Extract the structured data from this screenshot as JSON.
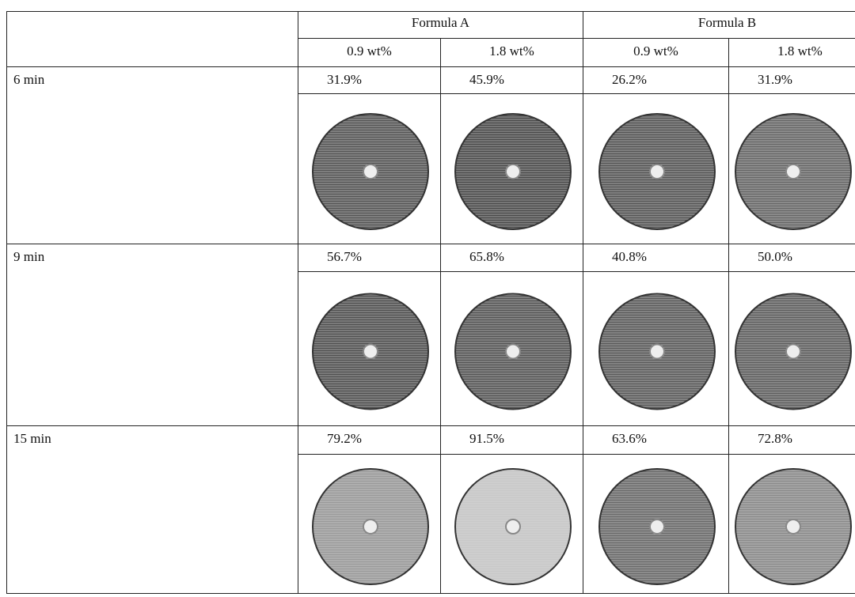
{
  "table": {
    "groups": [
      "Formula A",
      "Formula B"
    ],
    "concentrations": [
      "0.9 wt%",
      "1.8 wt%",
      "0.9 wt%",
      "1.8 wt%"
    ],
    "rows": [
      {
        "time": "6 min",
        "values": [
          "31.9%",
          "45.9%",
          "26.2%",
          "31.9%"
        ]
      },
      {
        "time": "9 min",
        "values": [
          "56.7%",
          "65.8%",
          "40.8%",
          "50.0%"
        ]
      },
      {
        "time": "15 min",
        "values": [
          "79.2%",
          "91.5%",
          "63.6%",
          "72.8%"
        ]
      }
    ]
  }
}
